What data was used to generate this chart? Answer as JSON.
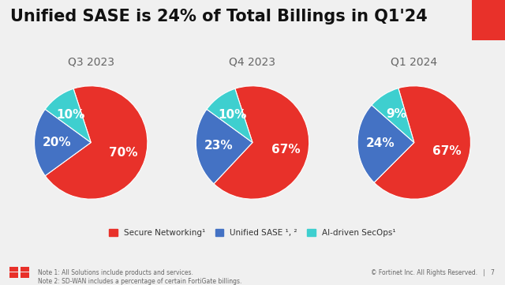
{
  "title": "Unified SASE is 24% of Total Billings in Q1․24",
  "title_text": "Unified SASE is 24% of Total Billings in Q1․24",
  "background_color": "#f0f0f0",
  "title_color": "#111111",
  "title_fontsize": 15,
  "charts": [
    {
      "label": "Q3 2023",
      "values": [
        70,
        20,
        10
      ],
      "pct_labels": [
        "70%",
        "20%",
        "10%"
      ]
    },
    {
      "label": "Q4 2023",
      "values": [
        67,
        23,
        10
      ],
      "pct_labels": [
        "67%",
        "23%",
        "10%"
      ]
    },
    {
      "label": "Q1 2024",
      "values": [
        67,
        24,
        9
      ],
      "pct_labels": [
        "67%",
        "24%",
        "9%"
      ]
    }
  ],
  "colors": [
    "#e8312a",
    "#4472c4",
    "#3ecfcf"
  ],
  "legend_labels": [
    "Secure Networking¹",
    "Unified SASE ¹, ²",
    "AI-driven SecOps¹"
  ],
  "note1": "Note 1: All Solutions include products and services.",
  "note2": "Note 2: SD-WAN includes a percentage of certain FortiGate billings.",
  "footer_right": "© Fortinet Inc. All Rights Reserved.   |   7",
  "subtitle_fontsize": 10,
  "pie_label_fontsize": 11
}
